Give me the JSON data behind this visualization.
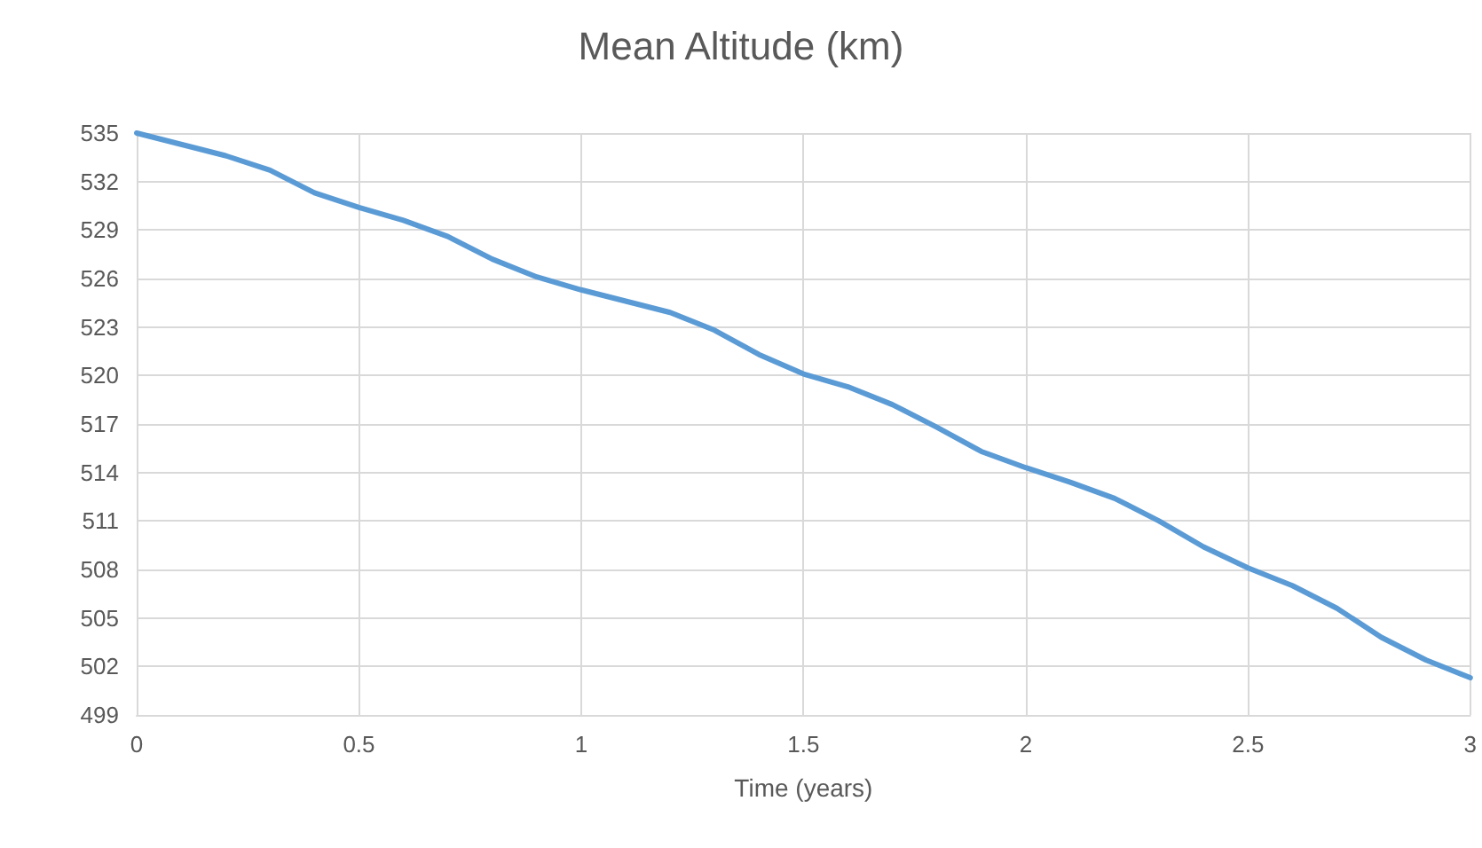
{
  "chart_data": {
    "type": "line",
    "title": "Mean Altitude (km)",
    "xlabel": "Time (years)",
    "x": [
      0,
      0.1,
      0.2,
      0.3,
      0.4,
      0.5,
      0.6,
      0.7,
      0.8,
      0.9,
      1,
      1.1,
      1.2,
      1.3,
      1.4,
      1.5,
      1.6,
      1.7,
      1.8,
      1.9,
      2,
      2.1,
      2.2,
      2.3,
      2.4,
      2.5,
      2.6,
      2.7,
      2.8,
      2.9,
      3
    ],
    "series": [
      {
        "color": "#5b9bd5",
        "values": [
          535,
          534.3,
          533.6,
          532.7,
          531.3,
          530.4,
          529.6,
          528.6,
          527.2,
          526.1,
          525.3,
          524.6,
          523.9,
          522.8,
          521.3,
          520.1,
          519.3,
          518.2,
          516.8,
          515.3,
          514.3,
          513.4,
          512.4,
          511,
          509.4,
          508.1,
          507,
          505.6,
          503.8,
          502.4,
          501.3
        ]
      }
    ],
    "xlim": [
      0,
      3
    ],
    "xticks": [
      0,
      0.5,
      1,
      1.5,
      2,
      2.5,
      3
    ],
    "ylim": [
      499,
      535
    ],
    "yticks": [
      499,
      502,
      505,
      508,
      511,
      514,
      517,
      520,
      523,
      526,
      529,
      532,
      535
    ],
    "grid": true,
    "marker": "none",
    "line_style": "solid"
  }
}
